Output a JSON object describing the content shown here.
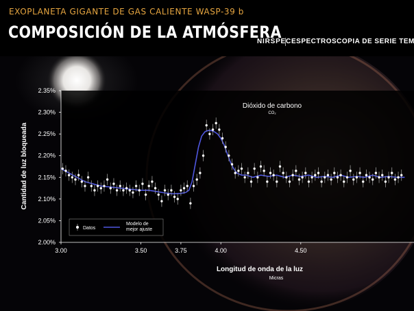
{
  "header": {
    "suptitle": "EXOPLANETA GIGANTE DE GAS CALIENTE WASP-39 b",
    "title": "COMPOSICIÓN DE LA ATMÓSFERA",
    "instrument": "NIRSPEC",
    "method": "ESPECTROSCOPIA DE SERIE TEMPORAL"
  },
  "colors": {
    "model_line": "#4f57e0",
    "data_points": "#ffffff",
    "error_bars": "#9a9a9a",
    "header_accent": "#e7a640"
  },
  "chart_data": {
    "type": "scatter",
    "xlabel": "Longitud de onda de la luz",
    "xlabel_unit": "Micras",
    "ylabel": "Cantidad de luz bloqueada",
    "xlim": [
      3.0,
      5.15
    ],
    "ylim": [
      2.0,
      2.35
    ],
    "x_ticks": [
      3.0,
      3.5,
      3.75,
      4.0,
      4.5
    ],
    "x_tick_labels": [
      "3.00",
      "3.50",
      "3.75",
      "4.00",
      "4.50"
    ],
    "y_ticks": [
      2.0,
      2.05,
      2.1,
      2.15,
      2.2,
      2.25,
      2.3,
      2.35
    ],
    "y_tick_labels": [
      "2.00%",
      "2.05%",
      "2.10%",
      "2.15%",
      "2.20%",
      "2.25%",
      "2.30%",
      "2.35%"
    ],
    "grid": false,
    "legend_position": "bottom-left",
    "annotation": {
      "label": "Dióxido de carbono",
      "sublabel": "CO₂",
      "x": 3.93
    },
    "series": [
      {
        "name": "Datos",
        "style": "points-with-error-bars",
        "x": [
          3.01,
          3.03,
          3.05,
          3.07,
          3.09,
          3.11,
          3.13,
          3.15,
          3.17,
          3.19,
          3.21,
          3.23,
          3.25,
          3.27,
          3.29,
          3.31,
          3.33,
          3.35,
          3.37,
          3.39,
          3.41,
          3.43,
          3.45,
          3.47,
          3.49,
          3.51,
          3.53,
          3.55,
          3.57,
          3.59,
          3.61,
          3.63,
          3.65,
          3.67,
          3.69,
          3.71,
          3.73,
          3.75,
          3.77,
          3.79,
          3.81,
          3.83,
          3.85,
          3.87,
          3.89,
          3.91,
          3.93,
          3.95,
          3.97,
          3.99,
          4.01,
          4.03,
          4.05,
          4.07,
          4.09,
          4.11,
          4.13,
          4.15,
          4.17,
          4.19,
          4.21,
          4.23,
          4.25,
          4.27,
          4.29,
          4.31,
          4.33,
          4.35,
          4.37,
          4.39,
          4.41,
          4.43,
          4.45,
          4.47,
          4.49,
          4.51,
          4.53,
          4.55,
          4.57,
          4.59,
          4.61,
          4.63,
          4.65,
          4.67,
          4.69,
          4.71,
          4.73,
          4.75,
          4.77,
          4.79,
          4.81,
          4.83,
          4.85,
          4.87,
          4.89,
          4.91,
          4.93,
          4.95,
          4.97,
          4.99,
          5.01,
          5.03,
          5.05,
          5.07,
          5.09,
          5.11,
          5.13
        ],
        "y": [
          2.17,
          2.165,
          2.155,
          2.15,
          2.145,
          2.155,
          2.14,
          2.13,
          2.15,
          2.13,
          2.12,
          2.13,
          2.125,
          2.13,
          2.145,
          2.125,
          2.135,
          2.12,
          2.13,
          2.12,
          2.125,
          2.12,
          2.115,
          2.13,
          2.12,
          2.135,
          2.11,
          2.13,
          2.14,
          2.125,
          2.11,
          2.095,
          2.12,
          2.11,
          2.12,
          2.105,
          2.1,
          2.12,
          2.125,
          2.13,
          2.09,
          2.13,
          2.145,
          2.16,
          2.2,
          2.27,
          2.25,
          2.26,
          2.275,
          2.26,
          2.24,
          2.22,
          2.2,
          2.18,
          2.16,
          2.165,
          2.17,
          2.15,
          2.16,
          2.14,
          2.17,
          2.15,
          2.175,
          2.165,
          2.14,
          2.16,
          2.155,
          2.14,
          2.175,
          2.16,
          2.15,
          2.14,
          2.155,
          2.165,
          2.145,
          2.15,
          2.16,
          2.14,
          2.15,
          2.155,
          2.16,
          2.14,
          2.15,
          2.155,
          2.145,
          2.16,
          2.15,
          2.155,
          2.14,
          2.15,
          2.165,
          2.145,
          2.15,
          2.16,
          2.14,
          2.155,
          2.15,
          2.145,
          2.16,
          2.15,
          2.155,
          2.14,
          2.15,
          2.16,
          2.145,
          2.15,
          2.155
        ],
        "err": 0.013
      },
      {
        "name": "Modelo de mejor ajuste",
        "style": "line",
        "x": [
          3.0,
          3.05,
          3.1,
          3.15,
          3.2,
          3.25,
          3.3,
          3.35,
          3.4,
          3.45,
          3.5,
          3.55,
          3.6,
          3.65,
          3.7,
          3.75,
          3.78,
          3.8,
          3.82,
          3.84,
          3.86,
          3.88,
          3.9,
          3.92,
          3.94,
          3.96,
          3.98,
          4.0,
          4.02,
          4.04,
          4.06,
          4.08,
          4.1,
          4.13,
          4.16,
          4.2,
          4.25,
          4.3,
          4.35,
          4.4,
          4.45,
          4.5,
          4.55,
          4.6,
          4.65,
          4.7,
          4.75,
          4.8,
          4.85,
          4.9,
          4.95,
          5.0,
          5.05,
          5.1,
          5.15
        ],
        "y": [
          2.17,
          2.16,
          2.15,
          2.14,
          2.135,
          2.13,
          2.128,
          2.126,
          2.124,
          2.122,
          2.12,
          2.12,
          2.117,
          2.114,
          2.112,
          2.113,
          2.115,
          2.12,
          2.14,
          2.18,
          2.22,
          2.245,
          2.255,
          2.258,
          2.258,
          2.255,
          2.25,
          2.24,
          2.225,
          2.205,
          2.185,
          2.17,
          2.16,
          2.155,
          2.155,
          2.15,
          2.155,
          2.152,
          2.155,
          2.15,
          2.155,
          2.152,
          2.155,
          2.15,
          2.152,
          2.15,
          2.155,
          2.15,
          2.152,
          2.15,
          2.155,
          2.15,
          2.152,
          2.15,
          2.15
        ]
      }
    ]
  }
}
